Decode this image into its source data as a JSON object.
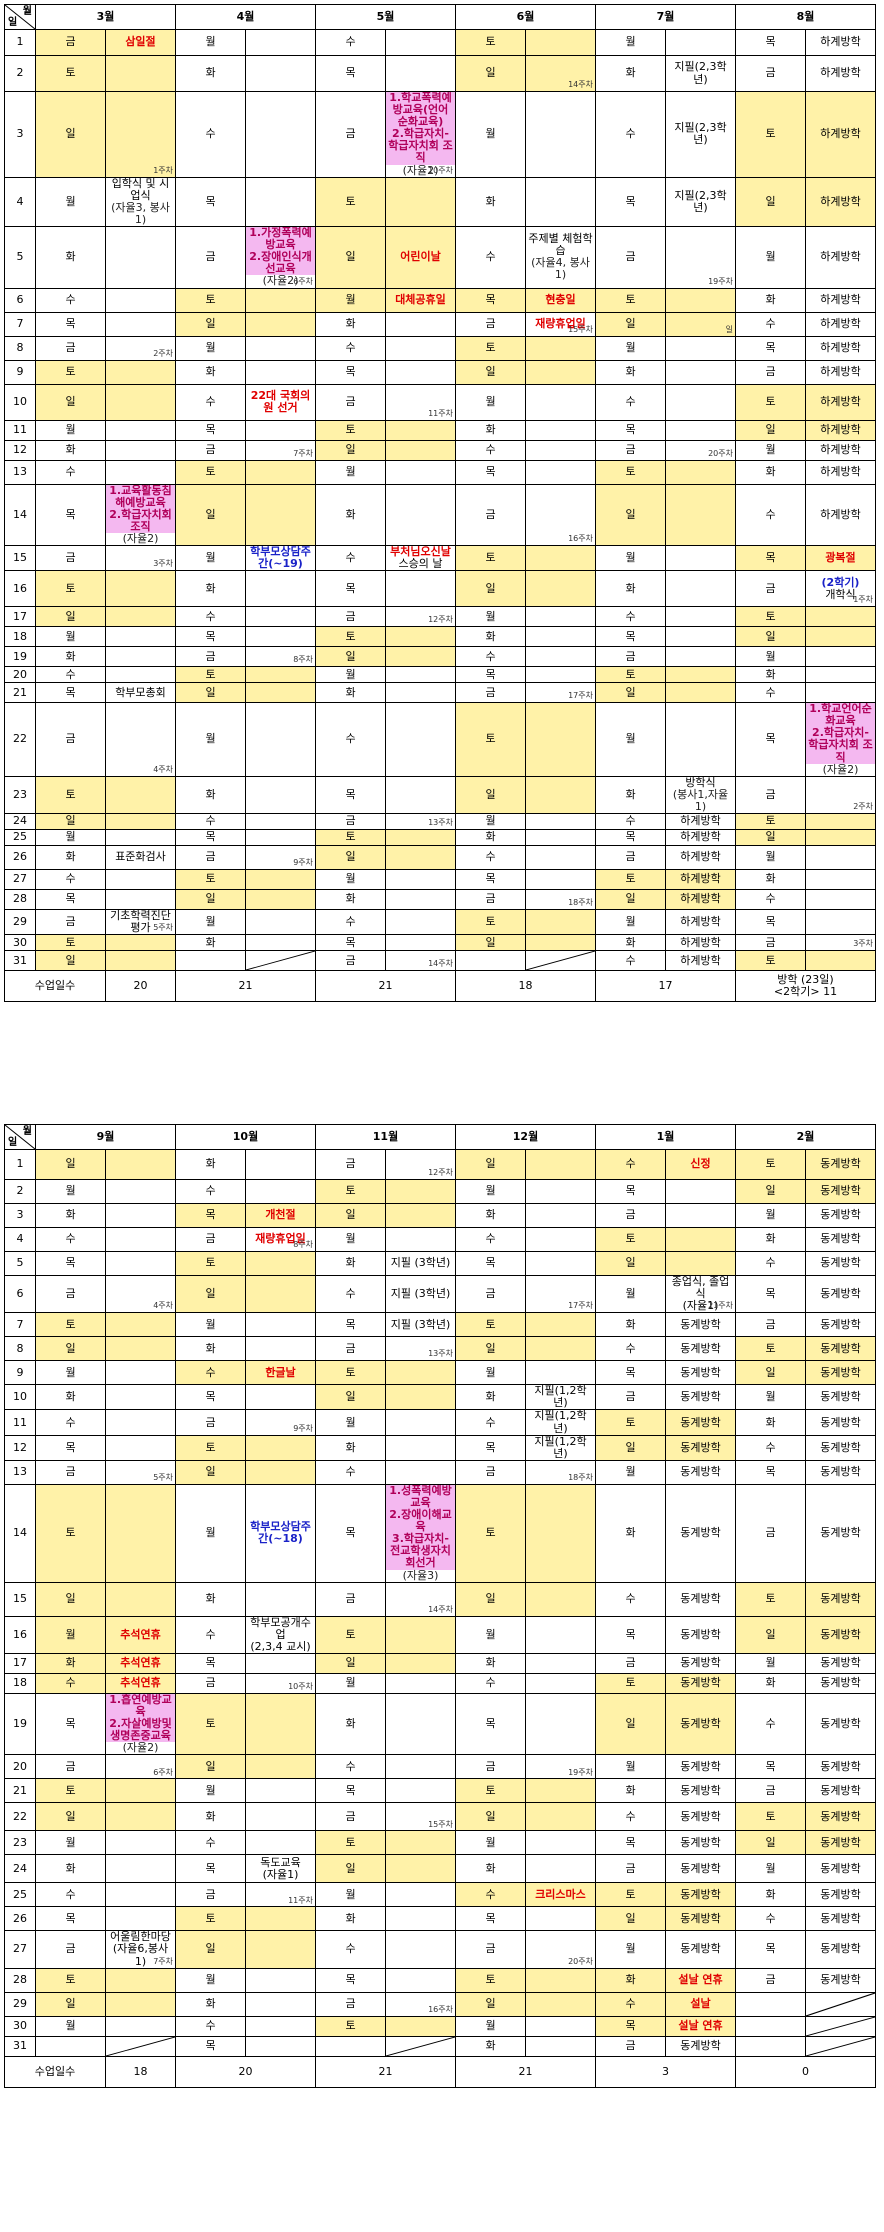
{
  "t1": {
    "corner_month": "월",
    "corner_day": "일",
    "months": [
      "3월",
      "4월",
      "5월",
      "6월",
      "7월",
      "8월"
    ],
    "days": [
      "1",
      "2",
      "3",
      "4",
      "5",
      "6",
      "7",
      "8",
      "9",
      "10",
      "11",
      "12",
      "13",
      "14",
      "15",
      "16",
      "17",
      "18",
      "19",
      "20",
      "21",
      "22",
      "23",
      "24",
      "25",
      "26",
      "27",
      "28",
      "29",
      "30",
      "31"
    ],
    "dow": [
      [
        "금",
        "토",
        "일",
        "월",
        "화",
        "수",
        "목",
        "금",
        "토",
        "일",
        "월",
        "화",
        "수",
        "목",
        "금",
        "토",
        "일",
        "월",
        "화",
        "수",
        "목",
        "금",
        "토",
        "일",
        "월",
        "화",
        "수",
        "목",
        "금",
        "토",
        "일"
      ],
      [
        "월",
        "화",
        "수",
        "목",
        "금",
        "토",
        "일",
        "월",
        "화",
        "수",
        "목",
        "금",
        "토",
        "일",
        "월",
        "화",
        "수",
        "목",
        "금",
        "토",
        "일",
        "월",
        "화",
        "수",
        "목",
        "금",
        "토",
        "일",
        "월",
        "화",
        ""
      ],
      [
        "수",
        "목",
        "금",
        "토",
        "일",
        "월",
        "화",
        "수",
        "목",
        "금",
        "토",
        "일",
        "월",
        "화",
        "수",
        "목",
        "금",
        "토",
        "일",
        "월",
        "화",
        "수",
        "목",
        "금",
        "토",
        "일",
        "월",
        "화",
        "수",
        "목",
        "금"
      ],
      [
        "토",
        "일",
        "월",
        "화",
        "수",
        "목",
        "금",
        "토",
        "일",
        "월",
        "화",
        "수",
        "목",
        "금",
        "토",
        "일",
        "월",
        "화",
        "수",
        "목",
        "금",
        "토",
        "일",
        "월",
        "화",
        "수",
        "목",
        "금",
        "토",
        "일",
        ""
      ],
      [
        "월",
        "화",
        "수",
        "목",
        "금",
        "토",
        "일",
        "월",
        "화",
        "수",
        "목",
        "금",
        "토",
        "일",
        "월",
        "화",
        "수",
        "목",
        "금",
        "토",
        "일",
        "월",
        "화",
        "수",
        "목",
        "금",
        "토",
        "일",
        "월",
        "화",
        "수"
      ],
      [
        "목",
        "금",
        "토",
        "일",
        "월",
        "화",
        "수",
        "목",
        "금",
        "토",
        "일",
        "월",
        "화",
        "수",
        "목",
        "금",
        "토",
        "일",
        "월",
        "화",
        "수",
        "목",
        "금",
        "토",
        "일",
        "월",
        "화",
        "수",
        "목",
        "금",
        "토"
      ]
    ],
    "row_heights": [],
    "ev": {
      "m0_1": "삼일절",
      "m0_3_wk": "1주차",
      "m0_4": "입학식 및 시업식",
      "m0_4_sub": "(자율3, 봉사1)",
      "m0_8_wk": "2주차",
      "m0_14a": "1.교육활동침해예방교육",
      "m0_14b": "2.학급자치회조직",
      "m0_14_sub": "(자율2)",
      "m0_15_wk": "3주차",
      "m0_21": "학부모총회",
      "m0_22_wk": "4주차",
      "m0_26": "표준화검사",
      "m0_29": "기초학력진단평가",
      "m0_29_wk": "5주차",
      "m1_5a": "1.가정폭력예방교육",
      "m1_5b": "2.장애인식개선교육",
      "m1_5_sub": "(자율2)",
      "m1_5_wk": "6주차",
      "m1_10": "22대 국회의원 선거",
      "m1_12_wk": "7주차",
      "m1_15": "학부모상담주간(~19)",
      "m1_19_wk": "8주차",
      "m1_26_wk": "9주차",
      "m2_3a": "1.학교폭력예방교육(언어순화교육)",
      "m2_3b": "2.학급자치-학급자치회 조직",
      "m2_3_sub": "(자율2)",
      "m2_3_wk": "10주차",
      "m2_5": "어린이날",
      "m2_6": "대체공휴일",
      "m2_10_wk": "11주차",
      "m2_15a": "부처님오신날",
      "m2_15b": "스승의 날",
      "m2_17_wk": "12주차",
      "m2_24_wk": "13주차",
      "m2_31_wk": "14주차",
      "m3_2_wk": "14주차",
      "m3_5": "주제별 체험학습",
      "m3_5_sub": "(자율4, 봉사1)",
      "m3_6": "현충일",
      "m3_7": "재량휴업일",
      "m3_7_wk": "15주차",
      "m3_14_wk": "16주차",
      "m3_21_wk": "17주차",
      "m3_28_wk": "18주차",
      "m4_2": "지필(2,3학년)",
      "m4_3": "지필(2,3학년)",
      "m4_4": "지필(2,3학년)",
      "m4_5_wk": "19주차",
      "m4_7_wk": "일",
      "m4_12_wk": "20주차",
      "m4_23": "방학식",
      "m4_23_sub": "(봉사1,자율1)",
      "m4_vac": "하계방학",
      "m5_vac": "하계방학",
      "m5_15": "광복절",
      "m5_16a": "(2학기)",
      "m5_16b": "개학식",
      "m5_16_wk": "1주차",
      "m5_22a": "1.학교언어순화교육",
      "m5_22b": "2.학급자치-학급자치회 조직",
      "m5_22_sub": "(자율2)",
      "m5_23_wk": "2주차",
      "m5_30_wk": "3주차"
    },
    "total_label": "수업일수",
    "totals": [
      "20",
      "21",
      "21",
      "18",
      "17"
    ],
    "aug_total_a": "방학 (23일)",
    "aug_total_b": "<2학기> 11"
  },
  "t2": {
    "corner_month": "월",
    "corner_day": "일",
    "months": [
      "9월",
      "10월",
      "11월",
      "12월",
      "1월",
      "2월"
    ],
    "dow": [
      [
        "일",
        "월",
        "화",
        "수",
        "목",
        "금",
        "토",
        "일",
        "월",
        "화",
        "수",
        "목",
        "금",
        "토",
        "일",
        "월",
        "화",
        "수",
        "목",
        "금",
        "토",
        "일",
        "월",
        "화",
        "수",
        "목",
        "금",
        "토",
        "일",
        "월",
        ""
      ],
      [
        "화",
        "수",
        "목",
        "금",
        "토",
        "일",
        "월",
        "화",
        "수",
        "목",
        "금",
        "토",
        "일",
        "월",
        "화",
        "수",
        "목",
        "금",
        "토",
        "일",
        "월",
        "화",
        "수",
        "목",
        "금",
        "토",
        "일",
        "월",
        "화",
        "수",
        "목"
      ],
      [
        "금",
        "토",
        "일",
        "월",
        "화",
        "수",
        "목",
        "금",
        "토",
        "일",
        "월",
        "화",
        "수",
        "목",
        "금",
        "토",
        "일",
        "월",
        "화",
        "수",
        "목",
        "금",
        "토",
        "일",
        "월",
        "화",
        "수",
        "목",
        "금",
        "토",
        ""
      ],
      [
        "일",
        "월",
        "화",
        "수",
        "목",
        "금",
        "토",
        "일",
        "월",
        "화",
        "수",
        "목",
        "금",
        "토",
        "일",
        "월",
        "화",
        "수",
        "목",
        "금",
        "토",
        "일",
        "월",
        "화",
        "수",
        "목",
        "금",
        "토",
        "일",
        "월",
        "화"
      ],
      [
        "수",
        "목",
        "금",
        "토",
        "일",
        "월",
        "화",
        "수",
        "목",
        "금",
        "토",
        "일",
        "월",
        "화",
        "수",
        "목",
        "금",
        "토",
        "일",
        "월",
        "화",
        "수",
        "목",
        "금",
        "토",
        "일",
        "월",
        "화",
        "수",
        "목",
        "금"
      ],
      [
        "토",
        "일",
        "월",
        "화",
        "수",
        "목",
        "금",
        "토",
        "일",
        "월",
        "화",
        "수",
        "목",
        "금",
        "토",
        "일",
        "월",
        "화",
        "수",
        "목",
        "금",
        "토",
        "일",
        "월",
        "화",
        "수",
        "목",
        "금",
        "",
        "",
        ""
      ]
    ],
    "ev": {
      "m0_6_wk": "4주차",
      "m0_13_wk": "5주차",
      "m0_16": "추석연휴",
      "m0_17": "추석연휴",
      "m0_18": "추석연휴",
      "m0_19a": "1.흡연예방교육",
      "m0_19b": "2.자살예방및생명존중교육",
      "m0_19_sub": "(자율2)",
      "m0_20_wk": "6주차",
      "m0_27a": "어울림한마당",
      "m0_27b": "(자율6,봉사1)",
      "m0_27_wk": "7주차",
      "m1_3": "개천절",
      "m1_4": "재량휴업일",
      "m1_4_wk": "8주차",
      "m1_9": "한글날",
      "m1_11_wk": "9주차",
      "m1_14": "학부모상담주간(~18)",
      "m1_16a": "학부모공개수업",
      "m1_16b": "(2,3,4 교시)",
      "m1_18_wk": "10주차",
      "m1_24a": "독도교육",
      "m1_24b": "(자율1)",
      "m1_25_wk": "11주차",
      "m2_1_wk": "12주차",
      "m2_5": "지필 (3학년)",
      "m2_6": "지필 (3학년)",
      "m2_7": "지필 (3학년)",
      "m2_8_wk": "13주차",
      "m2_14a": "1.성폭력예방교육",
      "m2_14b": "2.장애이해교육",
      "m2_14c": "3.학급자치-전교학생자치회선거",
      "m2_14_sub": "(자율3)",
      "m2_15_wk": "14주차",
      "m2_22_wk": "15주차",
      "m2_29_wk": "16주차",
      "m3_6_wk": "17주차",
      "m3_10": "지필(1,2학년)",
      "m3_11": "지필(1,2학년)",
      "m3_12": "지필(1,2학년)",
      "m3_13_wk": "18주차",
      "m3_20_wk": "19주차",
      "m3_25": "크리스마스",
      "m3_27_wk": "20주차",
      "m4_1": "신정",
      "m4_6a": "종업식, 졸업식",
      "m4_6b": "(자율1)",
      "m4_6_wk": "21주차",
      "m4_vac": "동계방학",
      "m4_28": "설날 연휴",
      "m4_29": "설날",
      "m4_30": "설날 연휴",
      "m5_vac": "동계방학"
    },
    "total_label": "수업일수",
    "totals": [
      "18",
      "20",
      "21",
      "21",
      "3",
      "0"
    ]
  }
}
